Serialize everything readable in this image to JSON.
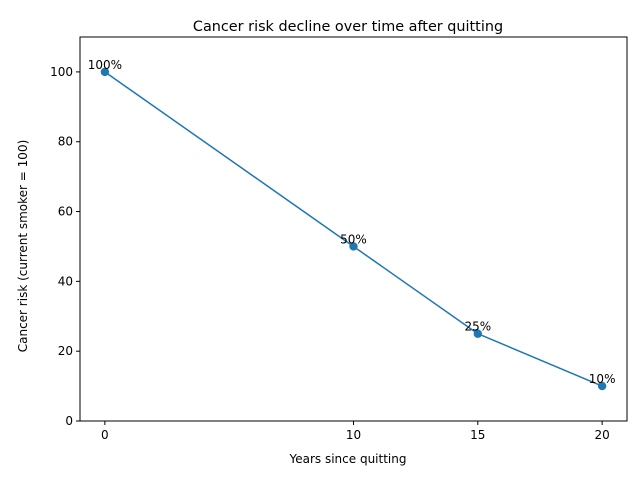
{
  "chart_data": {
    "type": "line",
    "title": "Cancer risk decline over time after quitting",
    "xlabel": "Years since quitting",
    "ylabel": "Cancer risk (current smoker = 100)",
    "x": [
      0,
      10,
      15,
      20
    ],
    "values": [
      100,
      50,
      25,
      10
    ],
    "point_labels": [
      "100%",
      "50%",
      "25%",
      "10%"
    ],
    "xticks": [
      0,
      10,
      15,
      20
    ],
    "yticks": [
      0,
      20,
      40,
      60,
      80,
      100
    ],
    "xlim": [
      -1,
      21
    ],
    "ylim": [
      0,
      110
    ],
    "grid": false,
    "markers": "circle",
    "colors": {
      "line": "#1f77b4",
      "axes": "#000000",
      "background": "#ffffff"
    }
  }
}
